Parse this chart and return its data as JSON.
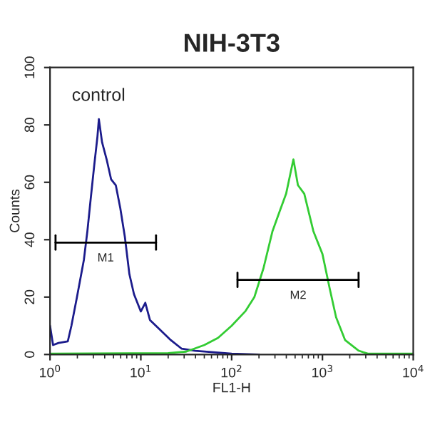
{
  "chart_data": {
    "type": "line",
    "title": "NIH-3T3",
    "xlabel": "FL1-H",
    "ylabel": "Counts",
    "log": "x",
    "xlim": [
      1,
      10000
    ],
    "ylim": [
      0,
      100
    ],
    "xticks": [
      {
        "value": 1,
        "label": "10$^{0}$"
      },
      {
        "value": 10,
        "label": "10$^{1}$"
      },
      {
        "value": 100,
        "label": "10$^{2}$"
      },
      {
        "value": 1000,
        "label": "10$^{3}$"
      },
      {
        "value": 10000,
        "label": "10$^{4}$"
      }
    ],
    "yticks": [
      0,
      20,
      40,
      60,
      80,
      100
    ],
    "grid": false,
    "legend": false,
    "series": [
      {
        "color": "#1c1c8c",
        "x": [
          1,
          1.08,
          1.24,
          1.57,
          1.72,
          1.98,
          2.36,
          2.58,
          2.8,
          3.07,
          3.33,
          3.45,
          3.74,
          4.2,
          4.71,
          5.3,
          5.94,
          6.67,
          7.48,
          8.41,
          10,
          11.2,
          12.6,
          15.8,
          21.4,
          28.2,
          39.8,
          100,
          200
        ],
        "values": [
          10,
          3.3,
          4,
          4.6,
          10,
          20,
          33,
          43,
          54,
          66,
          76,
          82,
          74,
          68,
          61,
          59,
          51,
          41,
          28,
          21,
          15,
          18,
          12,
          9,
          5,
          2,
          1.3,
          0.3,
          0
        ]
      },
      {
        "color": "#33cc33",
        "x": [
          1,
          20,
          31.6,
          50.1,
          70.8,
          100,
          141,
          178,
          224,
          282,
          339,
          398,
          479,
          537,
          631,
          794,
          1000,
          1202,
          1413,
          1778,
          2512,
          3162,
          10000
        ],
        "values": [
          0.3,
          0.5,
          1,
          3.3,
          5.8,
          10,
          15,
          20,
          30,
          43,
          50,
          56,
          68,
          59,
          56,
          43,
          35,
          23,
          13,
          5,
          1.3,
          0.3,
          0.3
        ]
      },
      {
        "color": "#000000",
        "x": [
          1.15,
          14.7
        ],
        "values": [
          39,
          39
        ],
        "errors": [
          2.5,
          2.5
        ]
      },
      {
        "color": "#000000",
        "x": [
          116,
          2500
        ],
        "values": [
          26,
          26
        ],
        "errors": [
          2.5,
          2.5
        ]
      }
    ],
    "annotations": [
      "control",
      {
        "text": "M1",
        "x": 4.1,
        "y": 39
      },
      {
        "text": "M2",
        "x": 540,
        "y": 26
      }
    ]
  }
}
